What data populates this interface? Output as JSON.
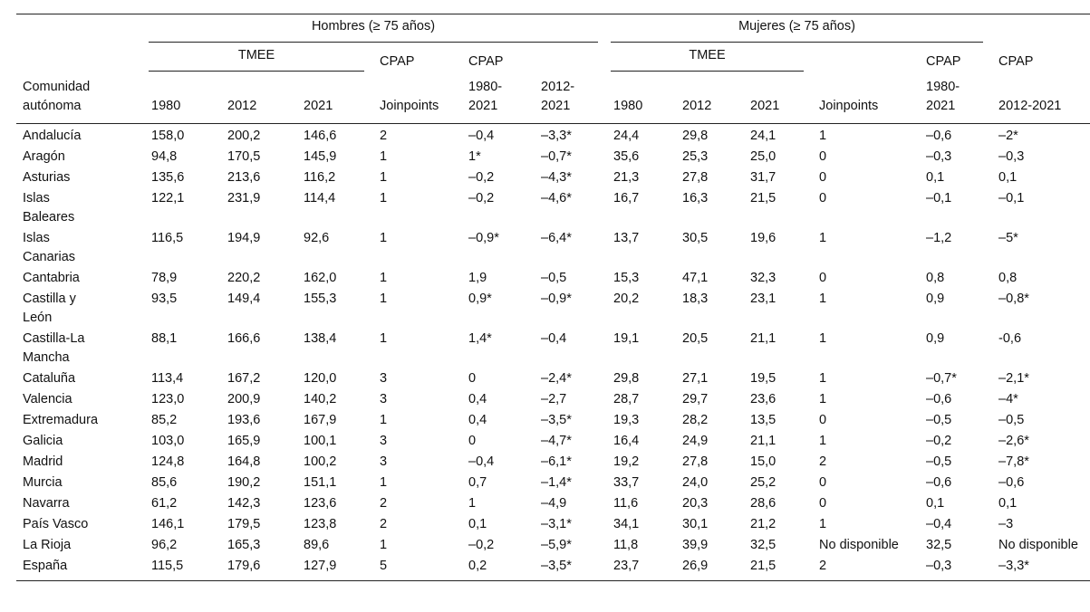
{
  "table": {
    "groups": [
      "Hombres (≥ 75 años)",
      "Mujeres (≥ 75 años)"
    ],
    "subgroups": [
      "TMEE",
      "CPAP",
      "CPAP",
      "TMEE",
      "CPAP",
      "CPAP"
    ],
    "columns": [
      "Comunidad autónoma",
      "1980",
      "2012",
      "2021",
      "Joinpoints",
      "1980-2021",
      "2012-2021",
      "1980",
      "2012",
      "2021",
      "Joinpoints",
      "1980-2021",
      "2012-2021"
    ],
    "rows": [
      [
        "Andalucía",
        "158,0",
        "200,2",
        "146,6",
        "2",
        "–0,4",
        "–3,3*",
        "24,4",
        "29,8",
        "24,1",
        "1",
        "–0,6",
        "–2*"
      ],
      [
        "Aragón",
        "94,8",
        "170,5",
        "145,9",
        "1",
        "1*",
        "–0,7*",
        "35,6",
        "25,3",
        "25,0",
        "0",
        "–0,3",
        "–0,3"
      ],
      [
        "Asturias",
        "135,6",
        "213,6",
        "116,2",
        "1",
        "–0,2",
        "–4,3*",
        "21,3",
        "27,8",
        "31,7",
        "0",
        "0,1",
        "0,1"
      ],
      [
        "Islas Baleares",
        "122,1",
        "231,9",
        "114,4",
        "1",
        "–0,2",
        "–4,6*",
        "16,7",
        "16,3",
        "21,5",
        "0",
        "–0,1",
        "–0,1"
      ],
      [
        "Islas Canarias",
        "116,5",
        "194,9",
        "92,6",
        "1",
        "–0,9*",
        "–6,4*",
        "13,7",
        "30,5",
        "19,6",
        "1",
        "–1,2",
        "–5*"
      ],
      [
        "Cantabria",
        "78,9",
        "220,2",
        "162,0",
        "1",
        "1,9",
        "–0,5",
        "15,3",
        "47,1",
        "32,3",
        "0",
        "0,8",
        "0,8"
      ],
      [
        "Castilla y León",
        "93,5",
        "149,4",
        "155,3",
        "1",
        "0,9*",
        "–0,9*",
        "20,2",
        "18,3",
        "23,1",
        "1",
        "0,9",
        "–0,8*"
      ],
      [
        "Castilla-La Mancha",
        "88,1",
        "166,6",
        "138,4",
        "1",
        "1,4*",
        "–0,4",
        "19,1",
        "20,5",
        "21,1",
        "1",
        "0,9",
        "-0,6"
      ],
      [
        "Cataluña",
        "113,4",
        "167,2",
        "120,0",
        "3",
        "0",
        "–2,4*",
        "29,8",
        "27,1",
        "19,5",
        "1",
        "–0,7*",
        "–2,1*"
      ],
      [
        "Valencia",
        "123,0",
        "200,9",
        "140,2",
        "3",
        "0,4",
        "–2,7",
        "28,7",
        "29,7",
        "23,6",
        "1",
        "–0,6",
        "–4*"
      ],
      [
        "Extremadura",
        "85,2",
        "193,6",
        "167,9",
        "1",
        "0,4",
        "–3,5*",
        "19,3",
        "28,2",
        "13,5",
        "0",
        "–0,5",
        "–0,5"
      ],
      [
        "Galicia",
        "103,0",
        "165,9",
        "100,1",
        "3",
        "0",
        "–4,7*",
        "16,4",
        "24,9",
        "21,1",
        "1",
        "–0,2",
        "–2,6*"
      ],
      [
        "Madrid",
        "124,8",
        "164,8",
        "100,2",
        "3",
        "–0,4",
        "–6,1*",
        "19,2",
        "27,8",
        "15,0",
        "2",
        "–0,5",
        "–7,8*"
      ],
      [
        "Murcia",
        "85,6",
        "190,2",
        "151,1",
        "1",
        "0,7",
        "–1,4*",
        "33,7",
        "24,0",
        "25,2",
        "0",
        "–0,6",
        "–0,6"
      ],
      [
        "Navarra",
        "61,2",
        "142,3",
        "123,6",
        "2",
        "1",
        "–4,9",
        "11,6",
        "20,3",
        "28,6",
        "0",
        "0,1",
        "0,1"
      ],
      [
        "País Vasco",
        "146,1",
        "179,5",
        "123,8",
        "2",
        "0,1",
        "–3,1*",
        "34,1",
        "30,1",
        "21,2",
        "1",
        "–0,4",
        "–3"
      ],
      [
        "La Rioja",
        "96,2",
        "165,3",
        "89,6",
        "1",
        "–0,2",
        "–5,9*",
        "11,8",
        "39,9",
        "32,5",
        "No disponible",
        "32,5",
        "No disponible"
      ],
      [
        "España",
        "115,5",
        "179,6",
        "127,9",
        "5",
        "0,2",
        "–3,5*",
        "23,7",
        "26,9",
        "21,5",
        "2",
        "–0,3",
        "–3,3*"
      ]
    ]
  }
}
